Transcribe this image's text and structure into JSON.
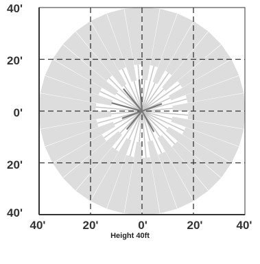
{
  "chart_data": {
    "type": "polar-spread",
    "title": "",
    "caption": "Height 40ft",
    "xlabel": "",
    "ylabel": "",
    "x_range": [
      -40,
      40
    ],
    "y_range": [
      -40,
      40
    ],
    "x_ticks": [
      "40'",
      "20'",
      "0'",
      "20'",
      "40'"
    ],
    "y_ticks": [
      "40'",
      "20'",
      "0'",
      "20'",
      "40'"
    ],
    "grid": true,
    "grid_style": "dashed",
    "colors": {
      "rays": "#dddddd",
      "dark_rays": "#777777",
      "grid": "#333333",
      "axis": "#333333"
    },
    "ray_count": 36,
    "ray_step_deg": 10,
    "ray_outer_radius_ft": 40,
    "ray_inner_radius_ft": 12,
    "dark_rays": [
      {
        "angle_deg": 130,
        "length_ft": 11
      },
      {
        "angle_deg": 95,
        "length_ft": 12
      },
      {
        "angle_deg": 165,
        "length_ft": 12
      },
      {
        "angle_deg": 200,
        "length_ft": 8
      },
      {
        "angle_deg": 230,
        "length_ft": 9
      },
      {
        "angle_deg": 300,
        "length_ft": 9
      },
      {
        "angle_deg": 20,
        "length_ft": 8
      }
    ]
  }
}
